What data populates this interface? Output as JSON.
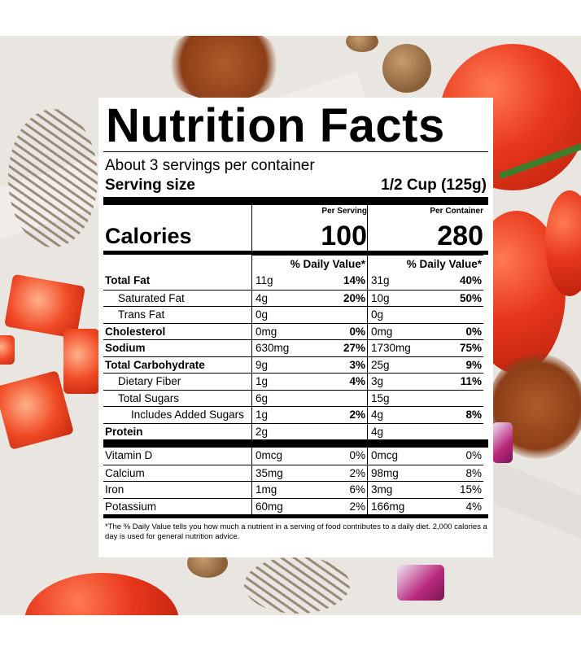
{
  "label": {
    "title": "Nutrition Facts",
    "servings": "About 3 servings per container",
    "serving_size_label": "Serving size",
    "serving_size_value": "1/2 Cup (125g)",
    "calories_label": "Calories",
    "per_serving_label": "Per Serving",
    "per_container_label": "Per Container",
    "calories_serving": "100",
    "calories_container": "280",
    "dv_header": "% Daily Value*",
    "nutrients": [
      {
        "name": "Total Fat",
        "s_amt": "11g",
        "s_dv": "14%",
        "c_amt": "31g",
        "c_dv": "40%"
      },
      {
        "name": "Saturated Fat",
        "s_amt": "4g",
        "s_dv": "20%",
        "c_amt": "10g",
        "c_dv": "50%"
      },
      {
        "name": "Trans Fat",
        "s_amt": "0g",
        "s_dv": "",
        "c_amt": "0g",
        "c_dv": ""
      },
      {
        "name": "Cholesterol",
        "s_amt": "0mg",
        "s_dv": "0%",
        "c_amt": "0mg",
        "c_dv": "0%"
      },
      {
        "name": "Sodium",
        "s_amt": "630mg",
        "s_dv": "27%",
        "c_amt": "1730mg",
        "c_dv": "75%"
      },
      {
        "name": "Total Carbohydrate",
        "s_amt": "9g",
        "s_dv": "3%",
        "c_amt": "25g",
        "c_dv": "9%"
      },
      {
        "name": "Dietary Fiber",
        "s_amt": "1g",
        "s_dv": "4%",
        "c_amt": "3g",
        "c_dv": "11%"
      },
      {
        "name": "Total Sugars",
        "s_amt": "6g",
        "s_dv": "",
        "c_amt": "15g",
        "c_dv": ""
      },
      {
        "name": "Includes Added Sugars",
        "s_amt": "1g",
        "s_dv": "2%",
        "c_amt": "4g",
        "c_dv": "8%"
      },
      {
        "name": "Protein",
        "s_amt": "2g",
        "s_dv": "",
        "c_amt": "4g",
        "c_dv": ""
      }
    ],
    "vitamins": [
      {
        "name": "Vitamin D",
        "s_amt": "0mcg",
        "s_dv": "0%",
        "c_amt": "0mcg",
        "c_dv": "0%"
      },
      {
        "name": "Calcium",
        "s_amt": "35mg",
        "s_dv": "2%",
        "c_amt": "98mg",
        "c_dv": "8%"
      },
      {
        "name": "Iron",
        "s_amt": "1mg",
        "s_dv": "6%",
        "c_amt": "3mg",
        "c_dv": "15%"
      },
      {
        "name": "Potassium",
        "s_amt": "60mg",
        "s_dv": "2%",
        "c_amt": "166mg",
        "c_dv": "4%"
      }
    ],
    "footnote": "*The % Daily Value tells you how much a nutrient in a serving of food contributes to a daily diet. 2,000 calories a day is used for general nutrition advice."
  }
}
